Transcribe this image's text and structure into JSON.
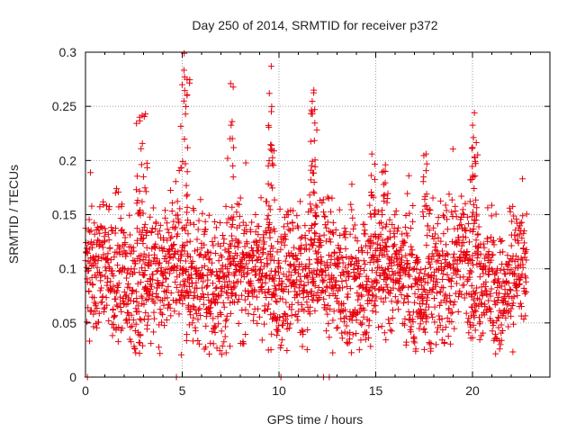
{
  "chart_data": {
    "type": "scatter",
    "title": "Day 250 of 2014, SRMTID for receiver p372",
    "xlabel": "GPS time / hours",
    "ylabel": "SRMTID / TECUs",
    "xlim": [
      0,
      24
    ],
    "ylim": [
      0,
      0.3
    ],
    "x_ticks": [
      0,
      5,
      10,
      15,
      20
    ],
    "x_tick_labels": [
      "0",
      "5",
      "10",
      "15",
      "20"
    ],
    "y_ticks": [
      0,
      0.05,
      0.1,
      0.15,
      0.2,
      0.25,
      0.3
    ],
    "y_tick_labels": [
      "0",
      "0.05",
      "0.1",
      "0.15",
      "0.2",
      "0.25",
      "0.3"
    ],
    "grid": true,
    "marker": "+",
    "series": [
      {
        "name": "SRMTID",
        "color": "#e8000b",
        "time_range_hours": [
          0,
          22.8
        ],
        "approx_point_count": 2500,
        "typical_range": [
          0.03,
          0.15
        ],
        "peaks": [
          {
            "x": 2.8,
            "y": 0.24
          },
          {
            "x": 3.1,
            "y": 0.243
          },
          {
            "x": 5.1,
            "y": 0.299
          },
          {
            "x": 5.25,
            "y": 0.275
          },
          {
            "x": 7.5,
            "y": 0.271
          },
          {
            "x": 9.6,
            "y": 0.287
          },
          {
            "x": 9.5,
            "y": 0.262
          },
          {
            "x": 11.8,
            "y": 0.265
          },
          {
            "x": 11.7,
            "y": 0.245
          },
          {
            "x": 14.8,
            "y": 0.206
          },
          {
            "x": 15.5,
            "y": 0.196
          },
          {
            "x": 17.6,
            "y": 0.206
          },
          {
            "x": 20.1,
            "y": 0.244
          },
          {
            "x": 20.0,
            "y": 0.212
          }
        ],
        "zero_points_x": [
          0.1,
          4.7,
          10.1,
          12.3,
          12.6
        ]
      }
    ]
  }
}
